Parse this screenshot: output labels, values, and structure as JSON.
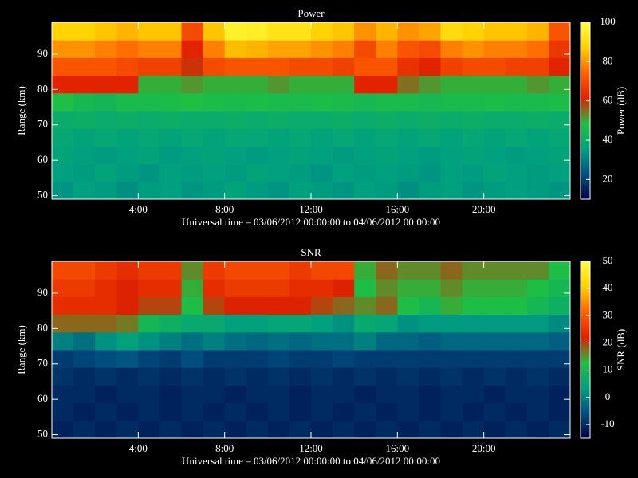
{
  "chart_data": [
    {
      "type": "heatmap",
      "title": "Power",
      "xlabel": "Universal time – 03/06/2012 00:00:00 to 04/06/2012 00:00:00",
      "ylabel": "Range (km)",
      "colorbar_label": "Power (dB)",
      "x": [
        0.5,
        1.5,
        2.5,
        3.5,
        4.5,
        5.5,
        6.5,
        7.5,
        8.5,
        9.5,
        10.5,
        11.5,
        12.5,
        13.5,
        14.5,
        15.5,
        16.5,
        17.5,
        18.5,
        19.5,
        20.5,
        21.5,
        22.5,
        23.5
      ],
      "y": [
        51.5,
        56.5,
        61.5,
        66.5,
        71.5,
        76.5,
        81.5,
        86.5,
        91.5,
        96.5
      ],
      "values": [
        [
          34,
          36,
          35,
          33,
          35,
          36,
          34,
          35,
          37,
          35,
          34,
          36,
          35,
          34,
          36,
          35,
          33,
          35,
          36,
          34,
          35,
          36,
          35,
          34
        ],
        [
          36,
          35,
          37,
          35,
          34,
          36,
          35,
          36,
          35,
          37,
          36,
          35,
          34,
          36,
          35,
          36,
          35,
          34,
          36,
          35,
          37,
          36,
          35,
          36
        ],
        [
          37,
          36,
          35,
          36,
          37,
          35,
          36,
          37,
          36,
          35,
          36,
          37,
          36,
          35,
          36,
          37,
          36,
          35,
          36,
          37,
          36,
          35,
          36,
          37
        ],
        [
          38,
          37,
          38,
          37,
          38,
          37,
          38,
          37,
          38,
          38,
          37,
          38,
          37,
          38,
          37,
          38,
          37,
          38,
          37,
          38,
          37,
          38,
          37,
          38
        ],
        [
          40,
          41,
          40,
          41,
          40,
          41,
          40,
          40,
          41,
          40,
          41,
          40,
          40,
          41,
          40,
          41,
          40,
          41,
          40,
          41,
          40,
          40,
          41,
          40
        ],
        [
          48,
          45,
          44,
          46,
          46,
          47,
          48,
          47,
          46,
          47,
          46,
          46,
          47,
          46,
          45,
          46,
          46,
          45,
          46,
          46,
          47,
          46,
          46,
          47
        ],
        [
          62,
          62,
          62,
          62,
          50,
          50,
          52,
          50,
          50,
          50,
          52,
          50,
          50,
          50,
          62,
          62,
          55,
          52,
          50,
          50,
          50,
          50,
          52,
          50
        ],
        [
          72,
          72,
          72,
          70,
          68,
          68,
          60,
          70,
          72,
          72,
          72,
          70,
          70,
          68,
          72,
          72,
          65,
          62,
          68,
          70,
          70,
          68,
          68,
          62
        ],
        [
          80,
          80,
          78,
          76,
          78,
          78,
          62,
          78,
          85,
          84,
          82,
          82,
          80,
          78,
          70,
          78,
          72,
          70,
          78,
          80,
          78,
          78,
          76,
          66
        ],
        [
          88,
          88,
          86,
          84,
          86,
          86,
          70,
          86,
          96,
          95,
          92,
          92,
          88,
          86,
          80,
          84,
          80,
          82,
          90,
          88,
          86,
          86,
          84,
          72
        ]
      ],
      "xlim": [
        0,
        24
      ],
      "xticks": [
        {
          "value": 4,
          "label": "4:00"
        },
        {
          "value": 8,
          "label": "8:00"
        },
        {
          "value": 12,
          "label": "12:00"
        },
        {
          "value": 16,
          "label": "16:00"
        },
        {
          "value": 20,
          "label": "20:00"
        }
      ],
      "ylim": [
        49,
        99
      ],
      "yticks": [
        50,
        60,
        70,
        80,
        90
      ],
      "zlim": [
        10,
        100
      ],
      "zticks": [
        20,
        40,
        60,
        80,
        100
      ],
      "colormap": [
        "#000040",
        "#005080",
        "#00a080",
        "#20c040",
        "#e02000",
        "#ff6000",
        "#ffd000",
        "#ffff40"
      ]
    },
    {
      "type": "heatmap",
      "title": "SNR",
      "xlabel": "Universal time – 03/06/2012 00:00:00 to 04/06/2012 00:00:00",
      "ylabel": "Range (km)",
      "colorbar_label": "SNR (dB)",
      "x": [
        0.5,
        1.5,
        2.5,
        3.5,
        4.5,
        5.5,
        6.5,
        7.5,
        8.5,
        9.5,
        10.5,
        11.5,
        12.5,
        13.5,
        14.5,
        15.5,
        16.5,
        17.5,
        18.5,
        19.5,
        20.5,
        21.5,
        22.5,
        23.5
      ],
      "y": [
        51.5,
        56.5,
        61.5,
        66.5,
        71.5,
        76.5,
        81.5,
        86.5,
        91.5,
        96.5
      ],
      "values": [
        [
          -11,
          -10,
          -11,
          -10,
          -11,
          -10,
          -11,
          -10,
          -11,
          -10,
          -11,
          -10,
          -11,
          -10,
          -11,
          -10,
          -11,
          -10,
          -11,
          -10,
          -11,
          -10,
          -11,
          -10
        ],
        [
          -10,
          -11,
          -10,
          -11,
          -10,
          -11,
          -10,
          -11,
          -10,
          -11,
          -10,
          -11,
          -10,
          -11,
          -10,
          -11,
          -10,
          -11,
          -10,
          -11,
          -10,
          -11,
          -10,
          -11
        ],
        [
          -10,
          -10,
          -11,
          -10,
          -10,
          -11,
          -10,
          -10,
          -11,
          -10,
          -10,
          -11,
          -10,
          -10,
          -11,
          -10,
          -10,
          -11,
          -10,
          -10,
          -11,
          -10,
          -10,
          -11
        ],
        [
          -9,
          -10,
          -9,
          -10,
          -9,
          -10,
          -9,
          -10,
          -9,
          -10,
          -9,
          -10,
          -9,
          -10,
          -9,
          -10,
          -9,
          -10,
          -9,
          -10,
          -9,
          -10,
          -9,
          -10
        ],
        [
          -8,
          -7,
          -6,
          -5,
          -7,
          -8,
          -6,
          -8,
          -8,
          -8,
          -7,
          -8,
          -8,
          -7,
          -8,
          -8,
          -8,
          -8,
          -8,
          -8,
          -8,
          -8,
          -8,
          -8
        ],
        [
          0,
          -2,
          2,
          4,
          2,
          0,
          -2,
          0,
          -2,
          -3,
          -2,
          -3,
          -2,
          -2,
          0,
          -3,
          -3,
          -4,
          -3,
          -3,
          -3,
          -3,
          -3,
          -4
        ],
        [
          18,
          18,
          18,
          17,
          10,
          8,
          6,
          6,
          4,
          4,
          5,
          5,
          4,
          2,
          6,
          5,
          2,
          3,
          3,
          3,
          3,
          3,
          3,
          1
        ],
        [
          24,
          24,
          24,
          22,
          20,
          20,
          12,
          20,
          22,
          22,
          22,
          22,
          20,
          18,
          16,
          18,
          12,
          10,
          14,
          12,
          12,
          12,
          10,
          8
        ],
        [
          26,
          26,
          24,
          22,
          24,
          24,
          14,
          24,
          26,
          26,
          26,
          24,
          24,
          22,
          12,
          16,
          14,
          14,
          16,
          14,
          14,
          14,
          12,
          10
        ],
        [
          28,
          28,
          26,
          24,
          26,
          26,
          16,
          26,
          28,
          28,
          28,
          26,
          28,
          28,
          14,
          18,
          16,
          16,
          18,
          16,
          16,
          16,
          16,
          12
        ]
      ],
      "xlim": [
        0,
        24
      ],
      "xticks": [
        {
          "value": 4,
          "label": "4:00"
        },
        {
          "value": 8,
          "label": "8:00"
        },
        {
          "value": 12,
          "label": "12:00"
        },
        {
          "value": 16,
          "label": "16:00"
        },
        {
          "value": 20,
          "label": "20:00"
        }
      ],
      "ylim": [
        49,
        99
      ],
      "yticks": [
        50,
        60,
        70,
        80,
        90
      ],
      "zlim": [
        -15,
        50
      ],
      "zticks": [
        -10,
        0,
        10,
        20,
        30,
        40,
        50
      ],
      "colormap": [
        "#000040",
        "#005080",
        "#00a080",
        "#20c040",
        "#e02000",
        "#ff6000",
        "#ffd000",
        "#ffff40"
      ]
    }
  ]
}
